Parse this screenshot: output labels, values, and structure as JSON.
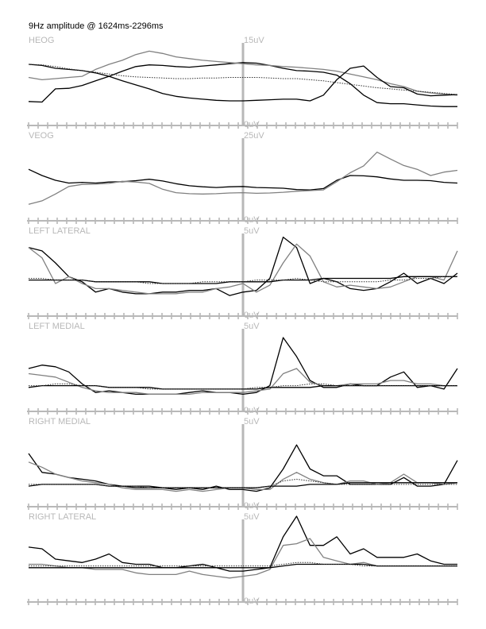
{
  "chart_data": {
    "type": "line",
    "title": "9Hz amplitude @ 1624ms-2296ms",
    "colors": {
      "axis": "#b8b8b8",
      "black_trace": "#000000",
      "gray_trace": "#808080",
      "dotted_trace": "#303030"
    },
    "panels": [
      {
        "label": "HEOG",
        "ymax_label": "15uV",
        "ymin_label": "0uV",
        "ylim": [
          0,
          15
        ],
        "series": [
          {
            "style": "black",
            "values": [
              4.2,
              4.1,
              6.4,
              6.5,
              7.0,
              7.8,
              8.6,
              9.5,
              10.3,
              10.6,
              10.5,
              10.3,
              10.2,
              10.4,
              10.6,
              10.8,
              11.0,
              10.9,
              10.5,
              10.0,
              9.6,
              9.5,
              9.3,
              8.8,
              7.3,
              5.3,
              4.0,
              3.8,
              3.8,
              3.6,
              3.4,
              3.3,
              3.3
            ]
          },
          {
            "style": "gray",
            "values": [
              8.4,
              8.0,
              8.2,
              8.4,
              8.6,
              9.8,
              10.7,
              11.4,
              12.4,
              13.0,
              12.6,
              12.0,
              11.7,
              11.4,
              11.2,
              11.0,
              10.8,
              10.6,
              10.5,
              10.3,
              10.2,
              10.0,
              9.8,
              9.5,
              9.0,
              8.5,
              8.0,
              7.3,
              6.8,
              6.0,
              5.7,
              5.5,
              5.3
            ]
          },
          {
            "style": "black",
            "values": [
              10.7,
              10.5,
              10.0,
              9.8,
              9.6,
              9.2,
              8.6,
              7.8,
              7.1,
              6.4,
              5.6,
              5.1,
              4.8,
              4.6,
              4.4,
              4.3,
              4.3,
              4.4,
              4.5,
              4.6,
              4.6,
              4.3,
              5.3,
              8.0,
              10.0,
              10.4,
              8.4,
              6.8,
              6.6,
              5.5,
              5.2,
              5.3,
              5.4
            ]
          },
          {
            "style": "dotted",
            "values": [
              10.7,
              10.6,
              10.3,
              9.9,
              9.6,
              9.3,
              9.0,
              8.7,
              8.5,
              8.4,
              8.3,
              8.2,
              8.2,
              8.3,
              8.3,
              8.4,
              8.4,
              8.4,
              8.3,
              8.2,
              8.2,
              8.0,
              7.8,
              7.5,
              7.2,
              6.9,
              6.6,
              6.4,
              6.2,
              6.0,
              5.8,
              5.6,
              5.4
            ]
          }
        ]
      },
      {
        "label": "VEOG",
        "ymax_label": "25uV",
        "ymin_label": "0uV",
        "ylim": [
          0,
          25
        ],
        "series": [
          {
            "style": "black",
            "values": [
              15.0,
              13.2,
              11.8,
              11.0,
              11.2,
              11.0,
              11.3,
              11.4,
              11.7,
              12.1,
              11.6,
              10.8,
              10.2,
              9.9,
              9.7,
              9.9,
              10.0,
              9.7,
              9.6,
              9.5,
              9.1,
              9.0,
              9.4,
              11.8,
              13.2,
              13.1,
              12.8,
              12.2,
              11.8,
              11.8,
              11.7,
              11.2,
              11.0
            ]
          },
          {
            "style": "gray",
            "values": [
              4.8,
              5.8,
              7.8,
              10.0,
              10.6,
              10.7,
              10.9,
              11.5,
              11.3,
              10.9,
              9.2,
              8.2,
              7.9,
              7.8,
              7.9,
              8.1,
              8.2,
              8.0,
              8.1,
              8.3,
              8.6,
              8.8,
              9.0,
              11.4,
              14.0,
              16.0,
              20.0,
              18.0,
              16.1,
              15.0,
              13.2,
              14.2,
              14.7
            ]
          }
        ]
      },
      {
        "label": "LEFT LATERAL",
        "ymax_label": "5uV",
        "ymin_label": "0uV",
        "ylim": [
          0,
          5
        ],
        "series": [
          {
            "style": "black",
            "values": [
              4.0,
              3.8,
              3.1,
              2.3,
              2.0,
              1.4,
              1.6,
              1.4,
              1.3,
              1.3,
              1.4,
              1.4,
              1.5,
              1.5,
              1.6,
              1.2,
              1.4,
              1.5,
              2.2,
              4.6,
              4.0,
              1.9,
              2.2,
              2.0,
              1.6,
              1.5,
              1.6,
              2.0,
              2.5,
              1.9,
              2.2,
              1.9,
              2.5
            ]
          },
          {
            "style": "gray",
            "values": [
              4.0,
              3.4,
              1.9,
              2.3,
              1.9,
              1.6,
              1.6,
              1.5,
              1.4,
              1.3,
              1.3,
              1.3,
              1.4,
              1.4,
              1.6,
              1.7,
              1.9,
              1.4,
              1.8,
              3.1,
              4.2,
              3.5,
              2.0,
              1.7,
              1.8,
              1.7,
              1.6,
              1.7,
              2.0,
              2.3,
              2.3,
              2.1,
              3.8
            ]
          },
          {
            "style": "black",
            "values": [
              2.1,
              2.1,
              2.1,
              2.1,
              2.1,
              2.0,
              2.0,
              2.0,
              2.0,
              2.0,
              1.9,
              1.9,
              1.9,
              1.9,
              1.9,
              2.0,
              2.0,
              2.0,
              2.0,
              2.1,
              2.1,
              2.1,
              2.2,
              2.2,
              2.2,
              2.2,
              2.2,
              2.2,
              2.3,
              2.3,
              2.3,
              2.3,
              2.3
            ]
          },
          {
            "style": "dotted",
            "values": [
              2.2,
              2.2,
              2.1,
              2.1,
              2.1,
              2.0,
              2.0,
              2.0,
              2.0,
              1.9,
              1.9,
              1.9,
              1.9,
              2.0,
              2.0,
              2.0,
              2.0,
              2.1,
              2.1,
              2.1,
              2.2,
              2.1,
              2.0,
              2.0,
              2.0,
              2.0,
              2.0,
              2.1,
              2.1,
              2.2,
              2.2,
              2.3,
              2.3
            ]
          }
        ]
      },
      {
        "label": "LEFT MEDIAL",
        "ymax_label": "5uV",
        "ymin_label": "0uV",
        "ylim": [
          0,
          5
        ],
        "series": [
          {
            "style": "black",
            "values": [
              2.5,
              2.7,
              2.6,
              2.3,
              1.6,
              1.1,
              1.2,
              1.1,
              1.0,
              1.0,
              1.0,
              1.0,
              1.1,
              1.2,
              1.1,
              1.1,
              1.0,
              1.1,
              1.5,
              4.3,
              3.2,
              1.8,
              1.4,
              1.4,
              1.6,
              1.5,
              1.5,
              2.0,
              2.3,
              1.4,
              1.5,
              1.3,
              2.5
            ]
          },
          {
            "style": "gray",
            "values": [
              2.2,
              2.1,
              2.0,
              1.7,
              1.4,
              1.2,
              1.1,
              1.1,
              1.1,
              1.0,
              1.0,
              1.0,
              1.0,
              1.1,
              1.1,
              1.1,
              1.1,
              1.2,
              1.3,
              2.2,
              2.5,
              1.7,
              1.5,
              1.5,
              1.6,
              1.6,
              1.6,
              1.8,
              1.8,
              1.6,
              1.6,
              1.5,
              1.5
            ]
          },
          {
            "style": "black",
            "values": [
              1.4,
              1.5,
              1.5,
              1.5,
              1.5,
              1.5,
              1.4,
              1.4,
              1.4,
              1.4,
              1.3,
              1.3,
              1.3,
              1.3,
              1.3,
              1.3,
              1.3,
              1.3,
              1.4,
              1.4,
              1.4,
              1.4,
              1.5,
              1.5,
              1.5,
              1.5,
              1.5,
              1.5,
              1.5,
              1.5,
              1.5,
              1.5,
              1.5
            ]
          },
          {
            "style": "dotted",
            "values": [
              1.5,
              1.5,
              1.6,
              1.6,
              1.5,
              1.5,
              1.4,
              1.4,
              1.4,
              1.3,
              1.3,
              1.3,
              1.3,
              1.3,
              1.3,
              1.3,
              1.3,
              1.4,
              1.4,
              1.5,
              1.5,
              1.6,
              1.6,
              1.5,
              1.5,
              1.5,
              1.5,
              1.5,
              1.5,
              1.5,
              1.5,
              1.5,
              1.5
            ]
          }
        ]
      },
      {
        "label": "RIGHT MEDIAL",
        "ymax_label": "5uV",
        "ymin_label": "0uV",
        "ylim": [
          0,
          5
        ],
        "series": [
          {
            "style": "black",
            "values": [
              3.1,
              2.0,
              1.9,
              1.7,
              1.6,
              1.5,
              1.3,
              1.2,
              1.1,
              1.1,
              1.1,
              1.0,
              1.1,
              1.0,
              1.2,
              1.0,
              1.0,
              0.9,
              1.1,
              2.2,
              3.6,
              2.2,
              1.8,
              1.8,
              1.3,
              1.3,
              1.3,
              1.3,
              1.7,
              1.2,
              1.2,
              1.3,
              2.7
            ]
          },
          {
            "style": "gray",
            "values": [
              2.6,
              2.3,
              1.9,
              1.7,
              1.5,
              1.4,
              1.3,
              1.1,
              1.0,
              1.0,
              1.0,
              0.9,
              1.0,
              0.9,
              1.0,
              1.1,
              1.1,
              1.0,
              1.0,
              1.6,
              2.0,
              1.6,
              1.4,
              1.3,
              1.5,
              1.5,
              1.3,
              1.4,
              1.9,
              1.4,
              1.4,
              1.3,
              1.4
            ]
          },
          {
            "style": "black",
            "values": [
              1.2,
              1.3,
              1.3,
              1.3,
              1.3,
              1.3,
              1.2,
              1.2,
              1.2,
              1.2,
              1.1,
              1.1,
              1.1,
              1.1,
              1.1,
              1.1,
              1.1,
              1.1,
              1.2,
              1.2,
              1.2,
              1.3,
              1.3,
              1.3,
              1.4,
              1.4,
              1.4,
              1.4,
              1.4,
              1.4,
              1.4,
              1.4,
              1.4
            ]
          },
          {
            "style": "dotted",
            "values": [
              1.3,
              1.3,
              1.3,
              1.3,
              1.3,
              1.3,
              1.2,
              1.2,
              1.2,
              1.1,
              1.1,
              1.1,
              1.1,
              1.1,
              1.1,
              1.1,
              1.1,
              1.1,
              1.2,
              1.5,
              1.6,
              1.5,
              1.4,
              1.3,
              1.3,
              1.3,
              1.3,
              1.3,
              1.3,
              1.3,
              1.3,
              1.3,
              1.3
            ]
          }
        ]
      },
      {
        "label": "RIGHT LATERAL",
        "ymax_label": "5uV",
        "ymin_label": "0uV",
        "ylim": [
          0,
          5
        ],
        "series": [
          {
            "style": "black",
            "values": [
              3.2,
              3.1,
              2.5,
              2.4,
              2.3,
              2.5,
              2.8,
              2.3,
              2.2,
              2.2,
              2.0,
              2.0,
              2.1,
              2.2,
              2.0,
              1.8,
              1.8,
              1.9,
              2.0,
              3.8,
              5.0,
              3.3,
              3.3,
              3.8,
              2.8,
              3.1,
              2.6,
              2.6,
              2.6,
              2.8,
              2.4,
              2.2,
              2.2
            ]
          },
          {
            "style": "gray",
            "values": [
              2.2,
              2.2,
              2.1,
              2.0,
              2.0,
              1.9,
              1.9,
              1.9,
              1.7,
              1.6,
              1.6,
              1.6,
              1.8,
              1.6,
              1.5,
              1.4,
              1.5,
              1.6,
              1.9,
              3.3,
              3.4,
              3.7,
              2.6,
              2.4,
              2.2,
              2.3,
              2.1,
              2.1,
              2.1,
              2.1,
              2.1,
              2.1,
              2.1
            ]
          },
          {
            "style": "black",
            "values": [
              2.0,
              2.0,
              2.0,
              2.0,
              2.0,
              2.0,
              2.0,
              2.0,
              2.0,
              2.0,
              2.0,
              2.0,
              2.0,
              2.0,
              2.0,
              2.0,
              2.0,
              2.0,
              2.0,
              2.1,
              2.2,
              2.2,
              2.2,
              2.2,
              2.2,
              2.2,
              2.1,
              2.1,
              2.1,
              2.1,
              2.1,
              2.1,
              2.1
            ]
          },
          {
            "style": "dotted",
            "values": [
              2.1,
              2.1,
              2.1,
              2.1,
              2.1,
              2.1,
              2.1,
              2.1,
              2.1,
              2.1,
              2.1,
              2.1,
              2.1,
              2.1,
              2.1,
              2.1,
              2.1,
              2.1,
              2.1,
              2.2,
              2.3,
              2.3,
              2.2,
              2.2,
              2.2,
              2.1,
              2.1,
              2.1,
              2.1,
              2.1,
              2.1,
              2.1,
              2.1
            ]
          }
        ]
      }
    ]
  }
}
